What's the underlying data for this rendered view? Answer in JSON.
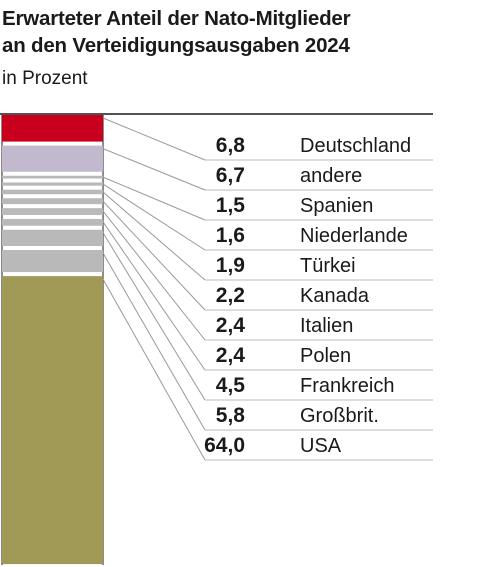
{
  "title_line1": "Erwarteter Anteil der Nato-Mitglieder",
  "title_line2": "an den Verteidigungsausgaben 2024",
  "subtitle": "in Prozent",
  "chart_data": {
    "type": "bar",
    "stacked": true,
    "title": "Erwarteter Anteil der Nato-Mitglieder an den Verteidigungsausgaben 2024",
    "subtitle": "in Prozent",
    "unit": "Prozent",
    "total": 100,
    "segments": [
      {
        "label": "Deutschland",
        "value": 6.8,
        "value_label": "6,8",
        "color": "#c8001e"
      },
      {
        "label": "andere",
        "value": 6.7,
        "value_label": "6,7",
        "color": "#c3b9cf"
      },
      {
        "label": "Spanien",
        "value": 1.5,
        "value_label": "1,5",
        "color": "#b9b9b9"
      },
      {
        "label": "Niederlande",
        "value": 1.6,
        "value_label": "1,6",
        "color": "#b9b9b9"
      },
      {
        "label": "Türkei",
        "value": 1.9,
        "value_label": "1,9",
        "color": "#b9b9b9"
      },
      {
        "label": "Kanada",
        "value": 2.2,
        "value_label": "2,2",
        "color": "#b9b9b9"
      },
      {
        "label": "Italien",
        "value": 2.4,
        "value_label": "2,4",
        "color": "#b9b9b9"
      },
      {
        "label": "Polen",
        "value": 2.4,
        "value_label": "2,4",
        "color": "#b9b9b9"
      },
      {
        "label": "Frankreich",
        "value": 4.5,
        "value_label": "4,5",
        "color": "#b9b9b9"
      },
      {
        "label": "Großbrit.",
        "value": 5.8,
        "value_label": "5,8",
        "color": "#b9b9b9"
      },
      {
        "label": "USA",
        "value": 64.0,
        "value_label": "64,0",
        "color": "#a19a57"
      }
    ]
  }
}
